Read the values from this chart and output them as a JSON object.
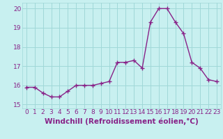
{
  "x": [
    0,
    1,
    2,
    3,
    4,
    5,
    6,
    7,
    8,
    9,
    10,
    11,
    12,
    13,
    14,
    15,
    16,
    17,
    18,
    19,
    20,
    21,
    22,
    23
  ],
  "y": [
    15.9,
    15.9,
    15.6,
    15.4,
    15.4,
    15.7,
    16.0,
    16.0,
    16.0,
    16.1,
    16.2,
    17.2,
    17.2,
    17.3,
    16.9,
    19.3,
    20.0,
    20.0,
    19.3,
    18.7,
    17.2,
    16.9,
    16.3,
    16.2
  ],
  "line_color": "#882288",
  "marker": "+",
  "marker_color": "#882288",
  "bg_color": "#c8f0f0",
  "grid_color": "#a0d8d8",
  "xlabel": "Windchill (Refroidissement éolien,°C)",
  "ylabel": "",
  "title": "",
  "xlim": [
    -0.5,
    23.5
  ],
  "ylim": [
    14.8,
    20.3
  ],
  "yticks": [
    15,
    16,
    17,
    18,
    19,
    20
  ],
  "xticks": [
    0,
    1,
    2,
    3,
    4,
    5,
    6,
    7,
    8,
    9,
    10,
    11,
    12,
    13,
    14,
    15,
    16,
    17,
    18,
    19,
    20,
    21,
    22,
    23
  ],
  "xtick_labels": [
    "0",
    "1",
    "2",
    "3",
    "4",
    "5",
    "6",
    "7",
    "8",
    "9",
    "10",
    "11",
    "12",
    "13",
    "14",
    "15",
    "16",
    "17",
    "18",
    "19",
    "20",
    "21",
    "22",
    "23"
  ],
  "font_color": "#882288",
  "tick_fontsize": 6.5,
  "xlabel_fontsize": 7.5,
  "linewidth": 1.0,
  "markersize": 4
}
